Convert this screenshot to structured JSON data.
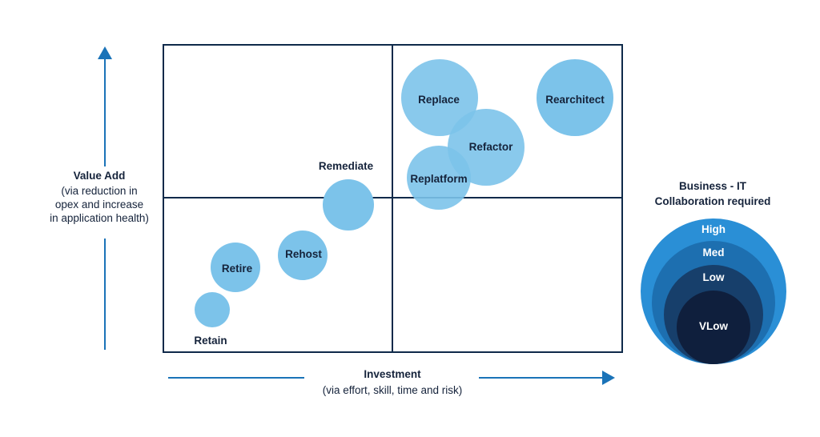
{
  "colors": {
    "frame": "#0f2a4a",
    "axis": "#1a73b8",
    "bubble": "#7cc3ea",
    "text": "#15233b",
    "legend_high": "#2a8fd6",
    "legend_med": "#1d6fb0",
    "legend_low": "#173f6b",
    "legend_vlow": "#0f1f3d"
  },
  "y_axis": {
    "title": "Value Add",
    "subtitle_lines": [
      "(via reduction in",
      "opex and increase",
      "in application health)"
    ]
  },
  "x_axis": {
    "title": "Investment",
    "subtitle": "(via effort, skill, time and risk)"
  },
  "bubbles": {
    "retain": "Retain",
    "retire": "Retire",
    "rehost": "Rehost",
    "remediate": "Remediate",
    "replace": "Replace",
    "refactor": "Refactor",
    "replatform": "Replatform",
    "rearchitect": "Rearchitect"
  },
  "legend": {
    "title_lines": [
      "Business - IT",
      "Collaboration required"
    ],
    "levels": {
      "high": "High",
      "med": "Med",
      "low": "Low",
      "vlow": "VLow"
    }
  }
}
